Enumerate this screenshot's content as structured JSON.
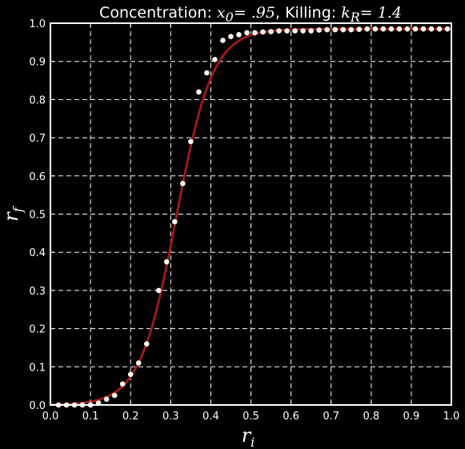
{
  "colors": {
    "background": "#000000",
    "axes": "#ffffff",
    "grid": "#ffffff",
    "curve": "#a01a1c",
    "points": "#fff5ee"
  },
  "chart_data": {
    "type": "scatter",
    "title": {
      "prefix": "Concentration: ",
      "x0_label": "x",
      "x0_sub": "0",
      "x0_eq": "= .95",
      "middle": ", Killing: ",
      "k_label": "k",
      "k_sub": "R",
      "k_eq": "= 1.4"
    },
    "xlabel": {
      "main": "r",
      "sub": "i"
    },
    "ylabel": {
      "main": "r",
      "sub": "f"
    },
    "xlim": [
      0.0,
      1.0
    ],
    "ylim": [
      0.0,
      1.0
    ],
    "xticks": [
      "0.0",
      "0.1",
      "0.2",
      "0.3",
      "0.4",
      "0.5",
      "0.6",
      "0.7",
      "0.8",
      "0.9",
      "1.0"
    ],
    "yticks": [
      "0.0",
      "0.1",
      "0.2",
      "0.3",
      "0.4",
      "0.5",
      "0.6",
      "0.7",
      "0.8",
      "0.9",
      "1.0"
    ],
    "grid": true,
    "series": [
      {
        "kind": "points",
        "x": [
          0.02,
          0.04,
          0.06,
          0.08,
          0.1,
          0.12,
          0.14,
          0.16,
          0.18,
          0.2,
          0.22,
          0.24,
          0.27,
          0.29,
          0.31,
          0.33,
          0.35,
          0.37,
          0.39,
          0.41,
          0.43,
          0.45,
          0.47,
          0.49,
          0.51,
          0.53,
          0.55,
          0.57,
          0.59,
          0.61,
          0.63,
          0.65,
          0.67,
          0.69,
          0.71,
          0.73,
          0.75,
          0.77,
          0.79,
          0.81,
          0.83,
          0.85,
          0.87,
          0.89,
          0.91,
          0.93,
          0.95,
          0.97,
          0.99
        ],
        "y": [
          0.0,
          0.0,
          0.0,
          0.0,
          0.0,
          0.005,
          0.015,
          0.025,
          0.055,
          0.08,
          0.11,
          0.16,
          0.3,
          0.375,
          0.48,
          0.58,
          0.69,
          0.82,
          0.87,
          0.905,
          0.955,
          0.965,
          0.97,
          0.975,
          0.975,
          0.977,
          0.978,
          0.98,
          0.98,
          0.98,
          0.98,
          0.98,
          0.982,
          0.983,
          0.983,
          0.983,
          0.983,
          0.984,
          0.985,
          0.985,
          0.985,
          0.985,
          0.985,
          0.985,
          0.985,
          0.985,
          0.985,
          0.985,
          0.985
        ]
      },
      {
        "kind": "curve",
        "model": "logistic",
        "upper": 0.985,
        "midpoint": 0.314,
        "steepness": 22
      }
    ]
  }
}
